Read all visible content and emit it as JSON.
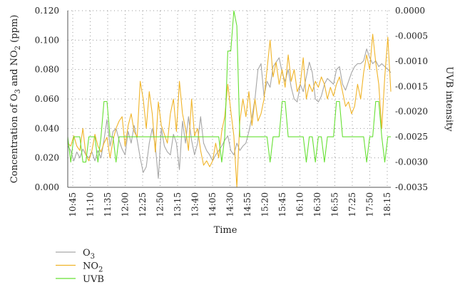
{
  "chart_data": {
    "type": "line",
    "xlabel": "Time",
    "ylabel_left": {
      "prefix": "Concentration of O",
      "sub1": "3",
      "mid": " and NO",
      "sub2": "2",
      "suffix": " (ppm)"
    },
    "ylabel_right": "UVB intensity",
    "ylim_left": [
      0,
      0.12
    ],
    "yticks_left": [
      "0.000",
      "0.020",
      "0.040",
      "0.060",
      "0.080",
      "0.100",
      "0.120"
    ],
    "ylim_right": [
      -0.0035,
      0
    ],
    "yticks_right": [
      "-0.0035",
      "-0.0030",
      "-0.0025",
      "-0.0020",
      "-0.0015",
      "-0.0010",
      "-0.0005",
      "0.0000"
    ],
    "x_ticks": [
      "10:45",
      "11:10",
      "11:35",
      "12:00",
      "12:25",
      "12:50",
      "13:15",
      "13:40",
      "14:05",
      "14:30",
      "14:55",
      "15:20",
      "15:45",
      "16:10",
      "16:30",
      "16:55",
      "17:25",
      "17:50",
      "18:15"
    ],
    "grid": true,
    "legend_position": "bottom-left",
    "series": [
      {
        "name": "O3",
        "legend_base": "O",
        "legend_sub": "3",
        "color": "#a6a6a6",
        "axis": "left",
        "values": [
          0.028,
          0.025,
          0.018,
          0.024,
          0.02,
          0.026,
          0.022,
          0.02,
          0.024,
          0.018,
          0.025,
          0.02,
          0.032,
          0.046,
          0.028,
          0.038,
          0.04,
          0.032,
          0.026,
          0.022,
          0.038,
          0.03,
          0.042,
          0.032,
          0.02,
          0.01,
          0.014,
          0.03,
          0.04,
          0.028,
          0.006,
          0.04,
          0.028,
          0.024,
          0.022,
          0.036,
          0.03,
          0.012,
          0.045,
          0.03,
          0.048,
          0.032,
          0.022,
          0.03,
          0.048,
          0.03,
          0.025,
          0.022,
          0.018,
          0.022,
          0.025,
          0.028,
          0.032,
          0.035,
          0.025,
          0.022,
          0.03,
          0.025,
          0.028,
          0.03,
          0.038,
          0.048,
          0.06,
          0.08,
          0.084,
          0.062,
          0.072,
          0.068,
          0.082,
          0.085,
          0.088,
          0.078,
          0.072,
          0.08,
          0.068,
          0.06,
          0.058,
          0.07,
          0.065,
          0.075,
          0.085,
          0.078,
          0.06,
          0.058,
          0.062,
          0.07,
          0.074,
          0.072,
          0.07,
          0.08,
          0.082,
          0.07,
          0.066,
          0.072,
          0.078,
          0.082,
          0.084,
          0.084,
          0.086,
          0.094,
          0.088,
          0.084,
          0.086,
          0.082,
          0.084,
          0.082,
          0.08,
          0.078
        ]
      },
      {
        "name": "NO2",
        "legend_base": "NO",
        "legend_sub": "2",
        "color": "#f0b429",
        "axis": "left",
        "values": [
          0.03,
          0.028,
          0.035,
          0.028,
          0.025,
          0.04,
          0.022,
          0.018,
          0.025,
          0.036,
          0.028,
          0.024,
          0.03,
          0.034,
          0.02,
          0.032,
          0.04,
          0.045,
          0.048,
          0.028,
          0.042,
          0.05,
          0.038,
          0.034,
          0.072,
          0.06,
          0.04,
          0.065,
          0.05,
          0.024,
          0.058,
          0.042,
          0.036,
          0.03,
          0.05,
          0.06,
          0.038,
          0.072,
          0.05,
          0.04,
          0.025,
          0.06,
          0.035,
          0.04,
          0.025,
          0.015,
          0.018,
          0.014,
          0.018,
          0.03,
          0.02,
          0.038,
          0.048,
          0.07,
          0.052,
          0.035,
          0.0,
          0.045,
          0.06,
          0.048,
          0.065,
          0.042,
          0.06,
          0.045,
          0.05,
          0.06,
          0.08,
          0.1,
          0.075,
          0.085,
          0.07,
          0.08,
          0.068,
          0.09,
          0.072,
          0.08,
          0.065,
          0.07,
          0.088,
          0.06,
          0.07,
          0.065,
          0.072,
          0.068,
          0.075,
          0.07,
          0.06,
          0.068,
          0.062,
          0.07,
          0.075,
          0.065,
          0.055,
          0.058,
          0.05,
          0.055,
          0.07,
          0.06,
          0.078,
          0.09,
          0.08,
          0.104,
          0.085,
          0.07,
          0.04,
          0.075,
          0.102,
          0.065
        ]
      },
      {
        "name": "UVB",
        "legend_base": "UVB",
        "legend_sub": "",
        "color": "#66e033",
        "axis": "right",
        "values": [
          -0.0025,
          -0.003,
          -0.0025,
          -0.0025,
          -0.0025,
          -0.003,
          -0.003,
          -0.0025,
          -0.0025,
          -0.0025,
          -0.003,
          -0.0025,
          -0.0018,
          -0.0018,
          -0.0025,
          -0.0025,
          -0.003,
          -0.0025,
          -0.0025,
          -0.0025,
          -0.0025,
          -0.0025,
          -0.0025,
          -0.0025,
          -0.0025,
          -0.0025,
          -0.0025,
          -0.0025,
          -0.0025,
          -0.0025,
          -0.0025,
          -0.0025,
          -0.0025,
          -0.0025,
          -0.0025,
          -0.0025,
          -0.0025,
          -0.0025,
          -0.0025,
          -0.0025,
          -0.0025,
          -0.0025,
          -0.0025,
          -0.0025,
          -0.0025,
          -0.0025,
          -0.0025,
          -0.0025,
          -0.0025,
          -0.0025,
          -0.0025,
          -0.003,
          -0.0025,
          -0.0008,
          -0.0008,
          0.0,
          -0.0003,
          -0.0025,
          -0.0025,
          -0.0025,
          -0.0025,
          -0.0025,
          -0.0025,
          -0.0025,
          -0.0025,
          -0.0025,
          -0.0025,
          -0.003,
          -0.0025,
          -0.0025,
          -0.0025,
          -0.0018,
          -0.0018,
          -0.0025,
          -0.0025,
          -0.0025,
          -0.0025,
          -0.0025,
          -0.0025,
          -0.003,
          -0.0025,
          -0.0025,
          -0.003,
          -0.0025,
          -0.0025,
          -0.003,
          -0.0025,
          -0.0025,
          -0.0025,
          -0.0018,
          -0.0018,
          -0.0025,
          -0.0025,
          -0.0025,
          -0.0025,
          -0.0025,
          -0.0025,
          -0.0025,
          -0.0025,
          -0.003,
          -0.0025,
          -0.0025,
          -0.0018,
          -0.0018,
          -0.0025,
          -0.003,
          -0.0025,
          -0.0025
        ]
      }
    ]
  }
}
